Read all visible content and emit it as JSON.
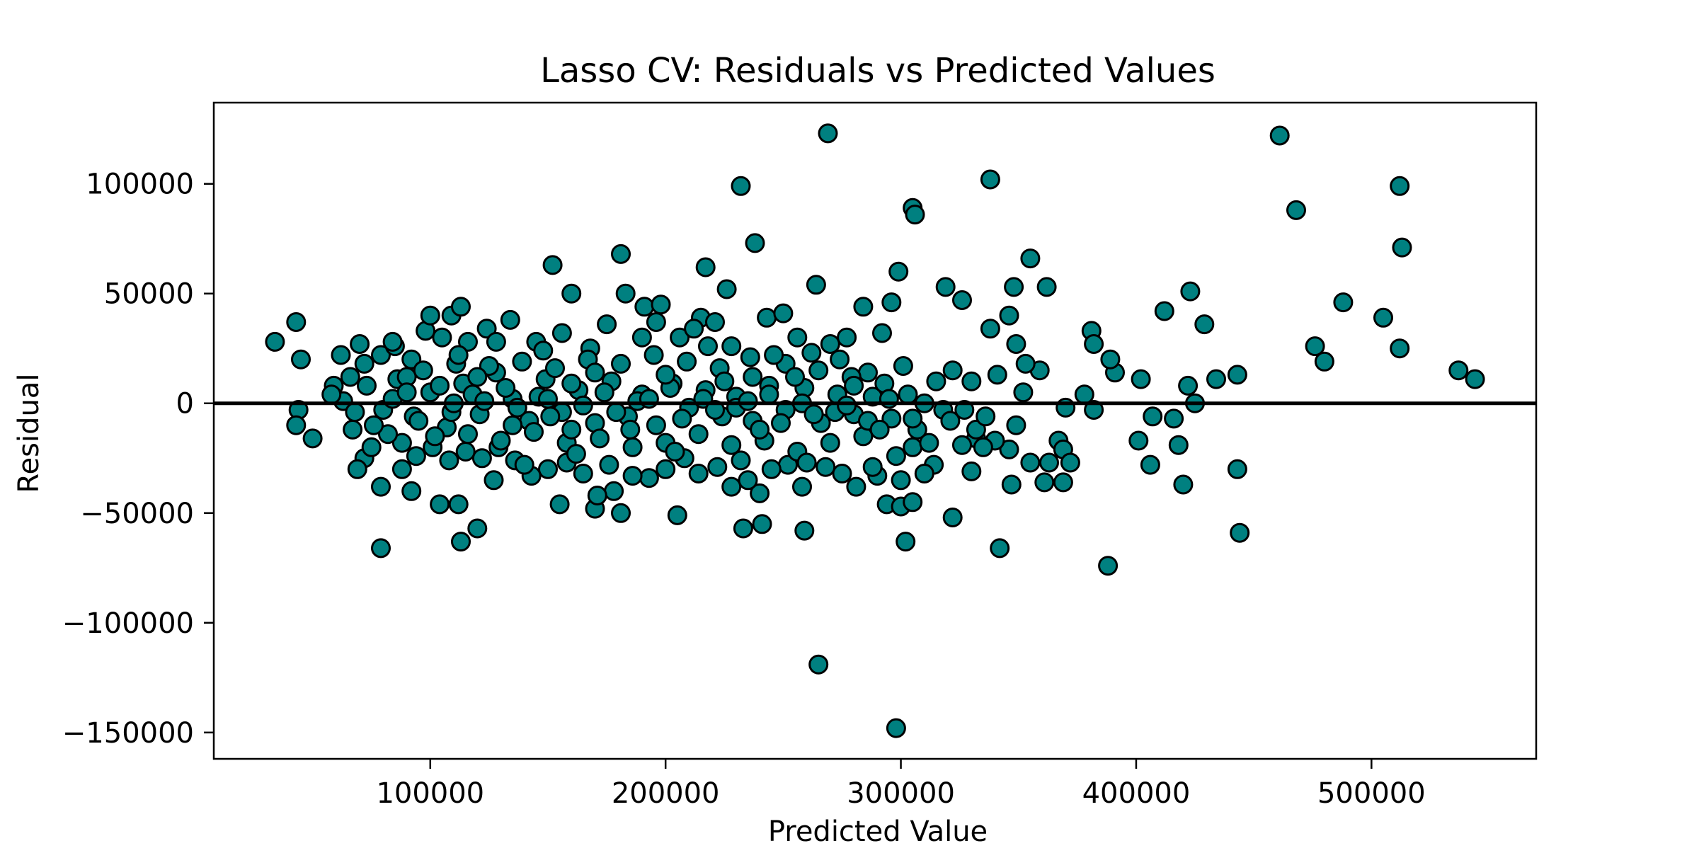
{
  "chart_data": {
    "type": "scatter",
    "title": "Lasso CV: Residuals vs Predicted Values",
    "xlabel": "Predicted Value",
    "ylabel": "Residual",
    "xlim": [
      8000,
      570000
    ],
    "ylim": [
      -162000,
      137000
    ],
    "xticks": [
      100000,
      200000,
      300000,
      400000,
      500000
    ],
    "yticks": [
      -150000,
      -100000,
      -50000,
      0,
      50000,
      100000
    ],
    "grid": false,
    "reference_line_y": 0,
    "colors": {
      "marker_fill": "#008080",
      "marker_edge": "#000000",
      "reference_line": "#000000"
    },
    "points": [
      [
        269000,
        123000
      ],
      [
        461000,
        122000
      ],
      [
        338000,
        102000
      ],
      [
        232000,
        99000
      ],
      [
        512000,
        99000
      ],
      [
        305000,
        89000
      ],
      [
        306000,
        86000
      ],
      [
        468000,
        88000
      ],
      [
        238000,
        73000
      ],
      [
        513000,
        71000
      ],
      [
        181000,
        68000
      ],
      [
        355000,
        66000
      ],
      [
        152000,
        63000
      ],
      [
        217000,
        62000
      ],
      [
        299000,
        60000
      ],
      [
        264000,
        54000
      ],
      [
        319000,
        53000
      ],
      [
        362000,
        53000
      ],
      [
        348000,
        53000
      ],
      [
        226000,
        52000
      ],
      [
        423000,
        51000
      ],
      [
        160000,
        50000
      ],
      [
        488000,
        46000
      ],
      [
        296000,
        46000
      ],
      [
        326000,
        47000
      ],
      [
        109000,
        40000
      ],
      [
        113000,
        44000
      ],
      [
        284000,
        44000
      ],
      [
        412000,
        42000
      ],
      [
        505000,
        39000
      ],
      [
        43000,
        37000
      ],
      [
        429000,
        36000
      ],
      [
        338000,
        34000
      ],
      [
        381000,
        33000
      ],
      [
        34000,
        28000
      ],
      [
        476000,
        26000
      ],
      [
        512000,
        25000
      ],
      [
        480000,
        19000
      ],
      [
        537000,
        15000
      ],
      [
        544000,
        11000
      ],
      [
        443000,
        13000
      ],
      [
        434000,
        11000
      ],
      [
        402000,
        11000
      ],
      [
        391000,
        14000
      ],
      [
        45000,
        20000
      ],
      [
        59000,
        8000
      ],
      [
        63000,
        1000
      ],
      [
        44000,
        -3000
      ],
      [
        43000,
        -10000
      ],
      [
        50000,
        -16000
      ],
      [
        67000,
        -12000
      ],
      [
        72000,
        -25000
      ],
      [
        79000,
        -38000
      ],
      [
        79000,
        -66000
      ],
      [
        92000,
        -40000
      ],
      [
        104000,
        -46000
      ],
      [
        112000,
        -46000
      ],
      [
        113000,
        -63000
      ],
      [
        120000,
        -57000
      ],
      [
        127000,
        -35000
      ],
      [
        155000,
        -46000
      ],
      [
        170000,
        -48000
      ],
      [
        181000,
        -50000
      ],
      [
        205000,
        -51000
      ],
      [
        233000,
        -57000
      ],
      [
        241000,
        -55000
      ],
      [
        259000,
        -58000
      ],
      [
        265000,
        -119000
      ],
      [
        298000,
        -148000
      ],
      [
        302000,
        -63000
      ],
      [
        294000,
        -46000
      ],
      [
        300000,
        -47000
      ],
      [
        305000,
        -45000
      ],
      [
        322000,
        -52000
      ],
      [
        342000,
        -66000
      ],
      [
        347000,
        -37000
      ],
      [
        388000,
        -74000
      ],
      [
        420000,
        -37000
      ],
      [
        443000,
        -30000
      ],
      [
        444000,
        -59000
      ],
      [
        406000,
        -28000
      ],
      [
        401000,
        -17000
      ],
      [
        418000,
        -19000
      ],
      [
        407000,
        -6000
      ],
      [
        416000,
        -7000
      ],
      [
        425000,
        0
      ],
      [
        422000,
        8000
      ],
      [
        370000,
        -2000
      ],
      [
        382000,
        -3000
      ],
      [
        378000,
        4000
      ],
      [
        389000,
        20000
      ],
      [
        382000,
        27000
      ],
      [
        367000,
        -17000
      ],
      [
        369000,
        -21000
      ],
      [
        372000,
        -27000
      ],
      [
        369000,
        -36000
      ],
      [
        361000,
        -36000
      ],
      [
        363000,
        -27000
      ],
      [
        355000,
        -27000
      ],
      [
        346000,
        -21000
      ],
      [
        340000,
        -17000
      ],
      [
        332000,
        -16000
      ],
      [
        332000,
        -12000
      ],
      [
        330000,
        -31000
      ],
      [
        326000,
        -19000
      ],
      [
        314000,
        -28000
      ],
      [
        310000,
        -32000
      ],
      [
        305000,
        -20000
      ],
      [
        300000,
        -35000
      ],
      [
        290000,
        -33000
      ],
      [
        281000,
        -38000
      ],
      [
        275000,
        -32000
      ],
      [
        268000,
        -29000
      ],
      [
        258000,
        -38000
      ],
      [
        252000,
        -28000
      ],
      [
        245000,
        -30000
      ],
      [
        240000,
        -41000
      ],
      [
        235000,
        -35000
      ],
      [
        228000,
        -38000
      ],
      [
        222000,
        -29000
      ],
      [
        214000,
        -32000
      ],
      [
        208000,
        -25000
      ],
      [
        200000,
        -30000
      ],
      [
        193000,
        -34000
      ],
      [
        186000,
        -33000
      ],
      [
        178000,
        -40000
      ],
      [
        171000,
        -42000
      ],
      [
        165000,
        -32000
      ],
      [
        158000,
        -27000
      ],
      [
        150000,
        -30000
      ],
      [
        143000,
        -33000
      ],
      [
        136000,
        -26000
      ],
      [
        129000,
        -20000
      ],
      [
        122000,
        -25000
      ],
      [
        115000,
        -22000
      ],
      [
        108000,
        -26000
      ],
      [
        101000,
        -20000
      ],
      [
        94000,
        -24000
      ],
      [
        88000,
        -18000
      ],
      [
        82000,
        -14000
      ],
      [
        75000,
        -20000
      ],
      [
        69000,
        -30000
      ],
      [
        66000,
        12000
      ],
      [
        72000,
        18000
      ],
      [
        79000,
        22000
      ],
      [
        85000,
        26000
      ],
      [
        92000,
        20000
      ],
      [
        98000,
        33000
      ],
      [
        105000,
        30000
      ],
      [
        116000,
        28000
      ],
      [
        124000,
        34000
      ],
      [
        134000,
        38000
      ],
      [
        145000,
        28000
      ],
      [
        156000,
        32000
      ],
      [
        168000,
        25000
      ],
      [
        175000,
        36000
      ],
      [
        183000,
        50000
      ],
      [
        191000,
        44000
      ],
      [
        198000,
        45000
      ],
      [
        206000,
        30000
      ],
      [
        215000,
        39000
      ],
      [
        221000,
        37000
      ],
      [
        228000,
        26000
      ],
      [
        236000,
        21000
      ],
      [
        243000,
        39000
      ],
      [
        250000,
        41000
      ],
      [
        256000,
        30000
      ],
      [
        262000,
        23000
      ],
      [
        270000,
        27000
      ],
      [
        277000,
        30000
      ],
      [
        286000,
        14000
      ],
      [
        292000,
        32000
      ],
      [
        301000,
        17000
      ],
      [
        315000,
        10000
      ],
      [
        322000,
        15000
      ],
      [
        330000,
        10000
      ],
      [
        341000,
        13000
      ],
      [
        352000,
        5000
      ],
      [
        359000,
        15000
      ],
      [
        353000,
        18000
      ],
      [
        346000,
        40000
      ],
      [
        349000,
        27000
      ],
      [
        336000,
        -6000
      ],
      [
        327000,
        -3000
      ],
      [
        318000,
        -3000
      ],
      [
        310000,
        0
      ],
      [
        303000,
        4000
      ],
      [
        296000,
        -7000
      ],
      [
        288000,
        3000
      ],
      [
        280000,
        -5000
      ],
      [
        273000,
        4000
      ],
      [
        266000,
        -9000
      ],
      [
        259000,
        7000
      ],
      [
        251000,
        -3000
      ],
      [
        244000,
        8000
      ],
      [
        237000,
        -8000
      ],
      [
        230000,
        3000
      ],
      [
        224000,
        -6000
      ],
      [
        217000,
        6000
      ],
      [
        210000,
        -2000
      ],
      [
        203000,
        9000
      ],
      [
        196000,
        -10000
      ],
      [
        190000,
        4000
      ],
      [
        184000,
        -6000
      ],
      [
        177000,
        10000
      ],
      [
        170000,
        -9000
      ],
      [
        163000,
        6000
      ],
      [
        156000,
        -4000
      ],
      [
        149000,
        11000
      ],
      [
        142000,
        -8000
      ],
      [
        135000,
        2000
      ],
      [
        128000,
        14000
      ],
      [
        121000,
        -5000
      ],
      [
        114000,
        9000
      ],
      [
        107000,
        -11000
      ],
      [
        100000,
        5000
      ],
      [
        93000,
        -6000
      ],
      [
        86000,
        11000
      ],
      [
        80000,
        -3000
      ],
      [
        73000,
        8000
      ],
      [
        68000,
        -4000
      ],
      [
        84000,
        2000
      ],
      [
        97000,
        15000
      ],
      [
        111000,
        18000
      ],
      [
        125000,
        17000
      ],
      [
        139000,
        19000
      ],
      [
        153000,
        16000
      ],
      [
        167000,
        20000
      ],
      [
        181000,
        18000
      ],
      [
        195000,
        22000
      ],
      [
        209000,
        19000
      ],
      [
        223000,
        16000
      ],
      [
        237000,
        12000
      ],
      [
        251000,
        18000
      ],
      [
        265000,
        15000
      ],
      [
        279000,
        12000
      ],
      [
        293000,
        9000
      ],
      [
        307000,
        -12000
      ],
      [
        321000,
        -8000
      ],
      [
        335000,
        -20000
      ],
      [
        349000,
        -10000
      ],
      [
        102000,
        -15000
      ],
      [
        116000,
        -14000
      ],
      [
        130000,
        -17000
      ],
      [
        144000,
        -13000
      ],
      [
        158000,
        -18000
      ],
      [
        172000,
        -16000
      ],
      [
        186000,
        -20000
      ],
      [
        200000,
        -18000
      ],
      [
        214000,
        -14000
      ],
      [
        228000,
        -19000
      ],
      [
        242000,
        -17000
      ],
      [
        256000,
        -22000
      ],
      [
        270000,
        -18000
      ],
      [
        284000,
        -15000
      ],
      [
        298000,
        -24000
      ],
      [
        312000,
        -18000
      ],
      [
        90000,
        12000
      ],
      [
        104000,
        8000
      ],
      [
        118000,
        4000
      ],
      [
        132000,
        7000
      ],
      [
        146000,
        3000
      ],
      [
        160000,
        9000
      ],
      [
        174000,
        5000
      ],
      [
        188000,
        1000
      ],
      [
        202000,
        7000
      ],
      [
        216000,
        2000
      ],
      [
        230000,
        -2000
      ],
      [
        244000,
        4000
      ],
      [
        258000,
        0
      ],
      [
        272000,
        -4000
      ],
      [
        286000,
        -8000
      ],
      [
        95000,
        -8000
      ],
      [
        109000,
        -4000
      ],
      [
        123000,
        1000
      ],
      [
        137000,
        -2000
      ],
      [
        151000,
        -6000
      ],
      [
        165000,
        -1000
      ],
      [
        179000,
        -4000
      ],
      [
        193000,
        2000
      ],
      [
        207000,
        -7000
      ],
      [
        221000,
        -3000
      ],
      [
        235000,
        1000
      ],
      [
        249000,
        -9000
      ],
      [
        263000,
        -5000
      ],
      [
        277000,
        -1000
      ],
      [
        291000,
        -12000
      ],
      [
        305000,
        -7000
      ],
      [
        88000,
        -30000
      ],
      [
        112000,
        22000
      ],
      [
        148000,
        24000
      ],
      [
        162000,
        -23000
      ],
      [
        176000,
        -28000
      ],
      [
        190000,
        30000
      ],
      [
        204000,
        -22000
      ],
      [
        218000,
        26000
      ],
      [
        232000,
        -26000
      ],
      [
        246000,
        22000
      ],
      [
        260000,
        -27000
      ],
      [
        274000,
        20000
      ],
      [
        288000,
        -29000
      ],
      [
        128000,
        28000
      ],
      [
        140000,
        -28000
      ],
      [
        196000,
        37000
      ],
      [
        212000,
        34000
      ],
      [
        150000,
        2000
      ],
      [
        170000,
        14000
      ],
      [
        185000,
        -12000
      ],
      [
        225000,
        10000
      ],
      [
        255000,
        12000
      ],
      [
        120000,
        12000
      ],
      [
        135000,
        -10000
      ],
      [
        160000,
        -12000
      ],
      [
        200000,
        13000
      ],
      [
        240000,
        -12000
      ],
      [
        280000,
        8000
      ],
      [
        295000,
        2000
      ],
      [
        110000,
        0
      ],
      [
        90000,
        5000
      ],
      [
        76000,
        -10000
      ],
      [
        58000,
        4000
      ],
      [
        62000,
        22000
      ],
      [
        70000,
        27000
      ],
      [
        84000,
        28000
      ],
      [
        100000,
        40000
      ]
    ]
  }
}
